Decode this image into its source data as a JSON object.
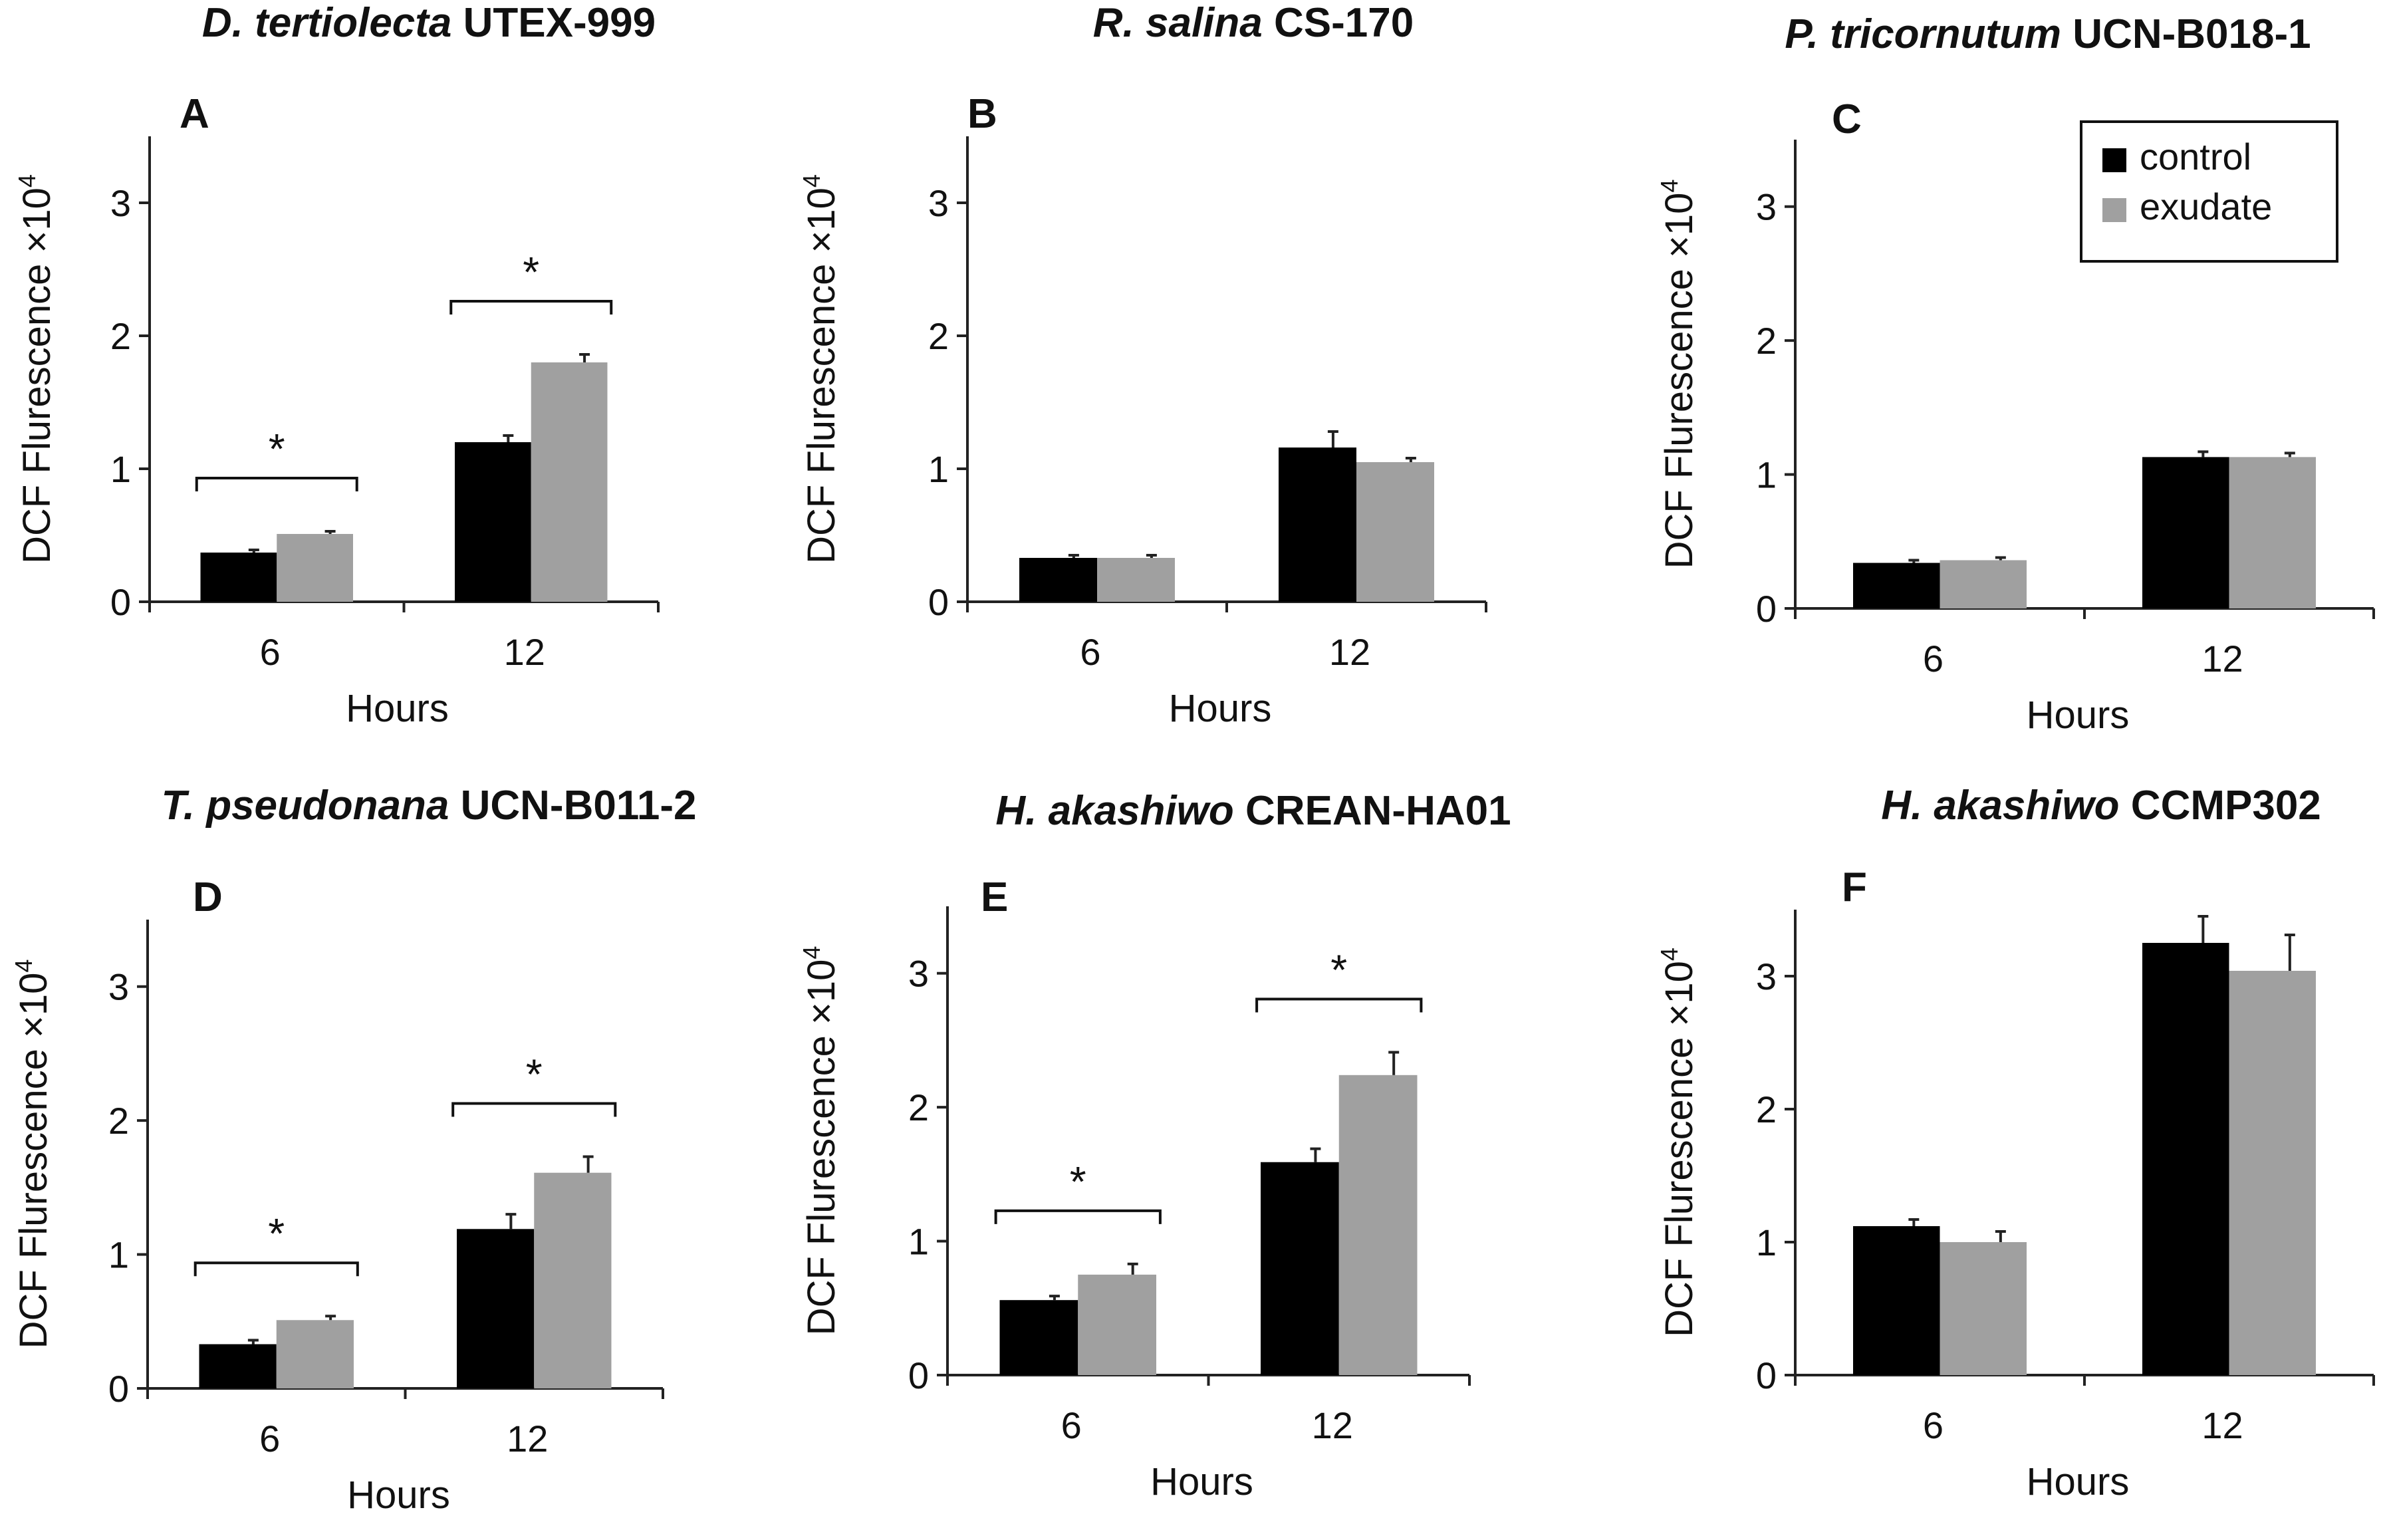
{
  "figure_caption": "",
  "legend": {
    "items": [
      {
        "label": "control",
        "color": "#000000"
      },
      {
        "label": "exudate",
        "color": "#a0a0a0"
      }
    ]
  },
  "chart_data": [
    {
      "panel": "A",
      "type": "bar",
      "title_species": "D. tertiolecta",
      "title_strain": "UTEX-999",
      "categories": [
        "6",
        "12"
      ],
      "series": [
        {
          "name": "control",
          "values": [
            0.37,
            1.2
          ],
          "errors": [
            0.02,
            0.05
          ]
        },
        {
          "name": "exudate",
          "values": [
            0.51,
            1.8
          ],
          "errors": [
            0.02,
            0.06
          ]
        }
      ],
      "significance": [
        {
          "category": "6",
          "label": "*"
        },
        {
          "category": "12",
          "label": "*"
        }
      ],
      "xlabel": "Hours",
      "ylabel": "DCF Flurescence ×10",
      "ylabel_exponent": "4",
      "ylim": [
        0,
        3.5
      ],
      "yticks": [
        0,
        1,
        2,
        3
      ]
    },
    {
      "panel": "B",
      "type": "bar",
      "title_species": "R. salina",
      "title_strain": "CS-170",
      "categories": [
        "6",
        "12"
      ],
      "series": [
        {
          "name": "control",
          "values": [
            0.33,
            1.16
          ],
          "errors": [
            0.02,
            0.12
          ]
        },
        {
          "name": "exudate",
          "values": [
            0.33,
            1.05
          ],
          "errors": [
            0.02,
            0.03
          ]
        }
      ],
      "significance": [],
      "xlabel": "Hours",
      "ylabel": "DCF Flurescence ×10",
      "ylabel_exponent": "4",
      "ylim": [
        0,
        3.5
      ],
      "yticks": [
        0,
        1,
        2,
        3
      ]
    },
    {
      "panel": "C",
      "type": "bar",
      "title_species": "P. tricornutum",
      "title_strain": "UCN-B018-1",
      "categories": [
        "6",
        "12"
      ],
      "series": [
        {
          "name": "control",
          "values": [
            0.34,
            1.13
          ],
          "errors": [
            0.02,
            0.04
          ]
        },
        {
          "name": "exudate",
          "values": [
            0.36,
            1.13
          ],
          "errors": [
            0.02,
            0.03
          ]
        }
      ],
      "significance": [],
      "xlabel": "Hours",
      "ylabel": "DCF Flurescence ×10",
      "ylabel_exponent": "4",
      "ylim": [
        0,
        3.5
      ],
      "yticks": [
        0,
        1,
        2,
        3
      ]
    },
    {
      "panel": "D",
      "type": "bar",
      "title_species": "T. pseudonana",
      "title_strain": "UCN-B011-2",
      "categories": [
        "6",
        "12"
      ],
      "series": [
        {
          "name": "control",
          "values": [
            0.33,
            1.19
          ],
          "errors": [
            0.03,
            0.11
          ]
        },
        {
          "name": "exudate",
          "values": [
            0.51,
            1.61
          ],
          "errors": [
            0.03,
            0.12
          ]
        }
      ],
      "significance": [
        {
          "category": "6",
          "label": "*"
        },
        {
          "category": "12",
          "label": "*"
        }
      ],
      "xlabel": "Hours",
      "ylabel": "DCF Flurescence ×10",
      "ylabel_exponent": "4",
      "ylim": [
        0,
        3.5
      ],
      "yticks": [
        0,
        1,
        2,
        3
      ]
    },
    {
      "panel": "E",
      "type": "bar",
      "title_species": "H. akashiwo",
      "title_strain": "CREAN-HA01",
      "categories": [
        "6",
        "12"
      ],
      "series": [
        {
          "name": "control",
          "values": [
            0.56,
            1.59
          ],
          "errors": [
            0.03,
            0.1
          ]
        },
        {
          "name": "exudate",
          "values": [
            0.75,
            2.24
          ],
          "errors": [
            0.08,
            0.17
          ]
        }
      ],
      "significance": [
        {
          "category": "6",
          "label": "*"
        },
        {
          "category": "12",
          "label": "*"
        }
      ],
      "xlabel": "Hours",
      "ylabel": "DCF Flurescence ×10",
      "ylabel_exponent": "4",
      "ylim": [
        0,
        3.5
      ],
      "yticks": [
        0,
        1,
        2,
        3
      ]
    },
    {
      "panel": "F",
      "type": "bar",
      "title_species": "H. akashiwo",
      "title_strain": "CCMP302",
      "categories": [
        "6",
        "12"
      ],
      "series": [
        {
          "name": "control",
          "values": [
            1.12,
            3.25
          ],
          "errors": [
            0.05,
            0.2
          ]
        },
        {
          "name": "exudate",
          "values": [
            1.0,
            3.04
          ],
          "errors": [
            0.08,
            0.27
          ]
        }
      ],
      "significance": [],
      "xlabel": "Hours",
      "ylabel": "DCF Flurescence ×10",
      "ylabel_exponent": "4",
      "ylim": [
        0,
        3.5
      ],
      "yticks": [
        0,
        1,
        2,
        3
      ]
    }
  ]
}
